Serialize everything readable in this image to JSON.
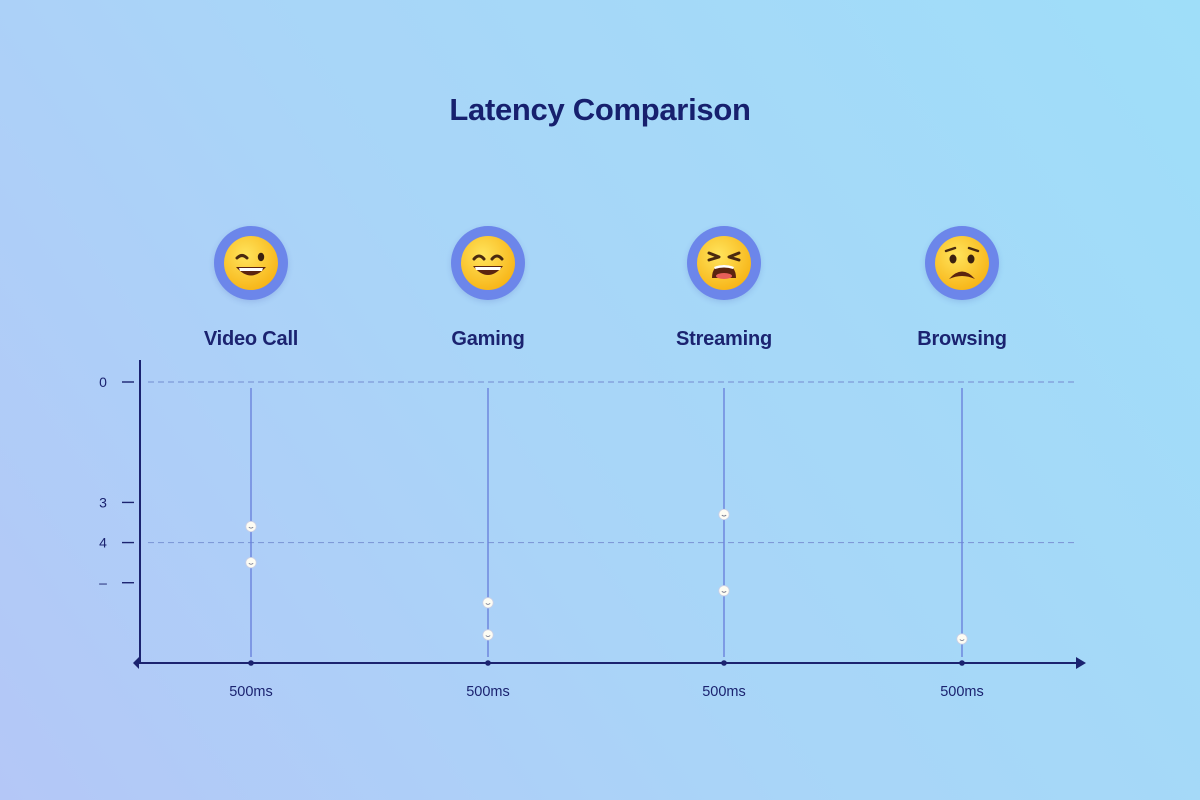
{
  "title": "Latency Comparison",
  "categories": [
    {
      "label": "Video Call",
      "icon": "grinning-squinting-face-icon",
      "mood": "happy-wink"
    },
    {
      "label": "Gaming",
      "icon": "grinning-face-icon",
      "mood": "happy"
    },
    {
      "label": "Streaming",
      "icon": "tired-face-icon",
      "mood": "tired"
    },
    {
      "label": "Browsing",
      "icon": "frowning-face-icon",
      "mood": "frown"
    }
  ],
  "chart_data": {
    "type": "scatter",
    "title": "Latency Comparison",
    "categories": [
      "Video Call",
      "Gaming",
      "Streaming",
      "Browsing"
    ],
    "x_tick_labels": [
      "500ms",
      "500ms",
      "500ms",
      "500ms"
    ],
    "y_tick_labels": [
      "0",
      "3",
      "4",
      "–"
    ],
    "y_tick_values": [
      0,
      3,
      4,
      5
    ],
    "ylim": [
      0,
      7
    ],
    "y_inverted": true,
    "grid": "dashed at 0 and 4",
    "points": [
      {
        "category": "Video Call",
        "values": [
          3.6,
          4.5
        ]
      },
      {
        "category": "Gaming",
        "values": [
          5.5,
          6.3
        ]
      },
      {
        "category": "Streaming",
        "values": [
          3.3,
          5.2
        ]
      },
      {
        "category": "Browsing",
        "values": [
          6.4
        ]
      }
    ],
    "colors": {
      "axis": "#1b2370",
      "stem": "#6a82dc",
      "grid": "#7f9ad8",
      "point_fill": "#fdfcf3",
      "emoji_ring": "#6c86ea",
      "emoji_face": "#ffd21e"
    }
  }
}
